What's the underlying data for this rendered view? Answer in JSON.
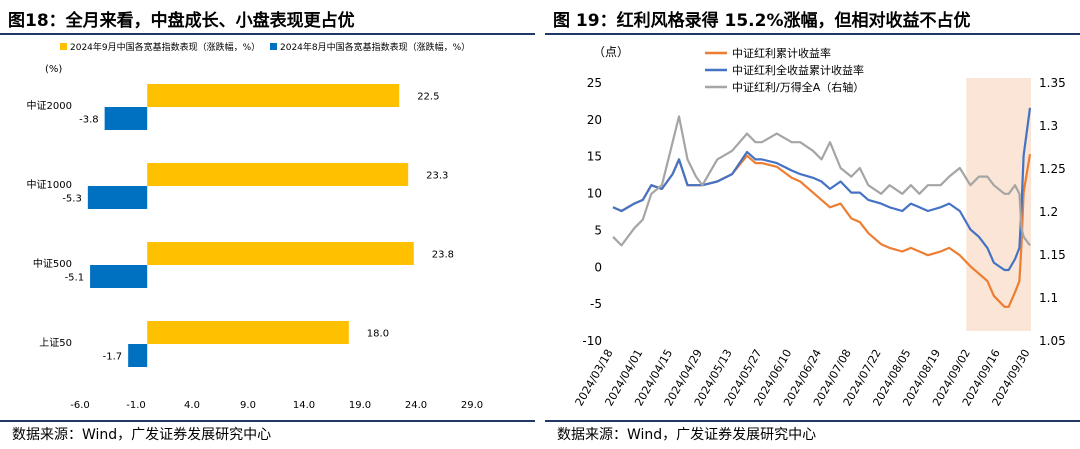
{
  "left": {
    "title": "图18：全月来看，中盘成长、小盘表现更占优",
    "source": "数据来源：Wind，广发证券发展研究中心",
    "chart_data": {
      "type": "bar",
      "orientation": "horizontal",
      "unit_label": "(%)",
      "categories": [
        "中证2000",
        "中证1000",
        "中证500",
        "上证50"
      ],
      "series": [
        {
          "name": "2024年9月中国各宽基指数表现（涨跌幅，%）",
          "color": "#FFC000",
          "values": [
            22.5,
            23.3,
            23.8,
            18.0
          ]
        },
        {
          "name": "2024年8月中国各宽基指数表现（涨跌幅，%）",
          "color": "#0070C0",
          "values": [
            -3.8,
            -5.3,
            -5.1,
            -1.7
          ]
        }
      ],
      "data_labels": [
        [
          "22.5",
          "23.3",
          "23.8",
          "18.0"
        ],
        [
          "-3.8",
          "-5.3",
          "-5.1",
          "-1.7"
        ]
      ],
      "xticks": [
        -6.0,
        -1.0,
        4.0,
        9.0,
        14.0,
        19.0,
        24.0,
        29.0
      ],
      "xtick_labels": [
        "-6.0",
        "-1.0",
        "4.0",
        "9.0",
        "14.0",
        "19.0",
        "24.0",
        "29.0"
      ],
      "xlim": [
        -6.0,
        29.0
      ],
      "legend_position": "top"
    }
  },
  "right": {
    "title": "图 19：红利风格录得 15.2%涨幅，但相对收益不占优",
    "source": "数据来源：Wind，广发证券发展研究中心",
    "chart_data": {
      "type": "line",
      "left_unit_label": "（点）",
      "left_ylim": [
        -10,
        25
      ],
      "left_yticks": [
        -10,
        -5,
        0,
        5,
        10,
        15,
        20,
        25
      ],
      "right_ylim": [
        1.05,
        1.35
      ],
      "right_yticks": [
        1.05,
        1.1,
        1.15,
        1.2,
        1.25,
        1.3,
        1.35
      ],
      "right_ytick_labels": [
        "1.05",
        "1.1",
        "1.15",
        "1.2",
        "1.25",
        "1.3",
        "1.35"
      ],
      "x_start": "2024-03-18",
      "x_end": "2024-09-30",
      "xtick_labels": [
        "2024/03/18",
        "2024/04/01",
        "2024/04/15",
        "2024/04/29",
        "2024/05/13",
        "2024/05/27",
        "2024/06/10",
        "2024/06/24",
        "2024/07/08",
        "2024/07/22",
        "2024/08/05",
        "2024/08/19",
        "2024/09/02",
        "2024/09/16",
        "2024/09/30"
      ],
      "highlight": {
        "from": "2024-09-01",
        "to": "2024-09-30",
        "color": "#FBE5D6"
      },
      "legend_position": "top-left",
      "series": [
        {
          "name": "中证红利累计收益率",
          "color": "#ED7D31",
          "axis": "left",
          "points": [
            [
              "2024-03-18",
              8.0
            ],
            [
              "2024-03-22",
              7.5
            ],
            [
              "2024-03-28",
              8.5
            ],
            [
              "2024-04-01",
              9.0
            ],
            [
              "2024-04-05",
              11.0
            ],
            [
              "2024-04-10",
              10.5
            ],
            [
              "2024-04-15",
              12.5
            ],
            [
              "2024-04-18",
              14.5
            ],
            [
              "2024-04-22",
              11.0
            ],
            [
              "2024-04-26",
              11.0
            ],
            [
              "2024-04-29",
              11.0
            ],
            [
              "2024-05-06",
              11.5
            ],
            [
              "2024-05-13",
              12.5
            ],
            [
              "2024-05-20",
              15.0
            ],
            [
              "2024-05-24",
              14.0
            ],
            [
              "2024-05-27",
              14.0
            ],
            [
              "2024-06-03",
              13.5
            ],
            [
              "2024-06-10",
              12.0
            ],
            [
              "2024-06-14",
              11.5
            ],
            [
              "2024-06-20",
              10.0
            ],
            [
              "2024-06-24",
              9.0
            ],
            [
              "2024-06-28",
              8.0
            ],
            [
              "2024-07-03",
              8.5
            ],
            [
              "2024-07-08",
              6.5
            ],
            [
              "2024-07-12",
              6.0
            ],
            [
              "2024-07-16",
              4.5
            ],
            [
              "2024-07-22",
              3.0
            ],
            [
              "2024-07-26",
              2.5
            ],
            [
              "2024-08-01",
              2.0
            ],
            [
              "2024-08-05",
              2.5
            ],
            [
              "2024-08-09",
              2.0
            ],
            [
              "2024-08-13",
              1.5
            ],
            [
              "2024-08-19",
              2.0
            ],
            [
              "2024-08-23",
              2.5
            ],
            [
              "2024-08-28",
              1.5
            ],
            [
              "2024-09-02",
              0.0
            ],
            [
              "2024-09-06",
              -1.0
            ],
            [
              "2024-09-10",
              -2.0
            ],
            [
              "2024-09-13",
              -4.0
            ],
            [
              "2024-09-18",
              -5.5
            ],
            [
              "2024-09-20",
              -5.5
            ],
            [
              "2024-09-23",
              -3.5
            ],
            [
              "2024-09-25",
              -2.0
            ],
            [
              "2024-09-26",
              3.0
            ],
            [
              "2024-09-27",
              10.0
            ],
            [
              "2024-09-30",
              15.2
            ]
          ]
        },
        {
          "name": "中证红利全收益累计收益率",
          "color": "#4472C4",
          "axis": "left",
          "points": [
            [
              "2024-03-18",
              8.0
            ],
            [
              "2024-03-22",
              7.5
            ],
            [
              "2024-03-28",
              8.5
            ],
            [
              "2024-04-01",
              9.0
            ],
            [
              "2024-04-05",
              11.0
            ],
            [
              "2024-04-10",
              10.5
            ],
            [
              "2024-04-15",
              12.5
            ],
            [
              "2024-04-18",
              14.5
            ],
            [
              "2024-04-22",
              11.0
            ],
            [
              "2024-04-26",
              11.0
            ],
            [
              "2024-04-29",
              11.0
            ],
            [
              "2024-05-06",
              11.5
            ],
            [
              "2024-05-13",
              12.5
            ],
            [
              "2024-05-20",
              15.5
            ],
            [
              "2024-05-24",
              14.5
            ],
            [
              "2024-05-27",
              14.5
            ],
            [
              "2024-06-03",
              14.0
            ],
            [
              "2024-06-10",
              13.0
            ],
            [
              "2024-06-14",
              12.5
            ],
            [
              "2024-06-20",
              12.0
            ],
            [
              "2024-06-24",
              11.5
            ],
            [
              "2024-06-28",
              10.5
            ],
            [
              "2024-07-03",
              11.5
            ],
            [
              "2024-07-08",
              10.0
            ],
            [
              "2024-07-12",
              10.0
            ],
            [
              "2024-07-16",
              9.0
            ],
            [
              "2024-07-22",
              8.5
            ],
            [
              "2024-07-26",
              8.0
            ],
            [
              "2024-08-01",
              7.5
            ],
            [
              "2024-08-05",
              8.5
            ],
            [
              "2024-08-09",
              8.0
            ],
            [
              "2024-08-13",
              7.5
            ],
            [
              "2024-08-19",
              8.0
            ],
            [
              "2024-08-23",
              8.5
            ],
            [
              "2024-08-28",
              7.5
            ],
            [
              "2024-09-02",
              5.0
            ],
            [
              "2024-09-06",
              4.0
            ],
            [
              "2024-09-10",
              2.5
            ],
            [
              "2024-09-13",
              0.5
            ],
            [
              "2024-09-18",
              -0.5
            ],
            [
              "2024-09-20",
              -0.5
            ],
            [
              "2024-09-23",
              1.0
            ],
            [
              "2024-09-25",
              2.5
            ],
            [
              "2024-09-26",
              8.0
            ],
            [
              "2024-09-27",
              15.0
            ],
            [
              "2024-09-30",
              21.5
            ]
          ]
        },
        {
          "name": "中证红利/万得全A（右轴）",
          "color": "#A5A5A5",
          "axis": "right",
          "points": [
            [
              "2024-03-18",
              1.17
            ],
            [
              "2024-03-22",
              1.16
            ],
            [
              "2024-03-28",
              1.18
            ],
            [
              "2024-04-01",
              1.19
            ],
            [
              "2024-04-05",
              1.22
            ],
            [
              "2024-04-10",
              1.23
            ],
            [
              "2024-04-15",
              1.28
            ],
            [
              "2024-04-18",
              1.31
            ],
            [
              "2024-04-22",
              1.26
            ],
            [
              "2024-04-26",
              1.24
            ],
            [
              "2024-04-29",
              1.23
            ],
            [
              "2024-05-06",
              1.26
            ],
            [
              "2024-05-13",
              1.27
            ],
            [
              "2024-05-20",
              1.29
            ],
            [
              "2024-05-24",
              1.28
            ],
            [
              "2024-05-27",
              1.28
            ],
            [
              "2024-06-03",
              1.29
            ],
            [
              "2024-06-10",
              1.28
            ],
            [
              "2024-06-14",
              1.28
            ],
            [
              "2024-06-20",
              1.27
            ],
            [
              "2024-06-24",
              1.26
            ],
            [
              "2024-06-28",
              1.28
            ],
            [
              "2024-07-03",
              1.25
            ],
            [
              "2024-07-08",
              1.24
            ],
            [
              "2024-07-12",
              1.25
            ],
            [
              "2024-07-16",
              1.23
            ],
            [
              "2024-07-22",
              1.22
            ],
            [
              "2024-07-26",
              1.23
            ],
            [
              "2024-08-01",
              1.22
            ],
            [
              "2024-08-05",
              1.23
            ],
            [
              "2024-08-09",
              1.22
            ],
            [
              "2024-08-13",
              1.23
            ],
            [
              "2024-08-19",
              1.23
            ],
            [
              "2024-08-23",
              1.24
            ],
            [
              "2024-08-28",
              1.25
            ],
            [
              "2024-09-02",
              1.23
            ],
            [
              "2024-09-06",
              1.24
            ],
            [
              "2024-09-10",
              1.24
            ],
            [
              "2024-09-13",
              1.23
            ],
            [
              "2024-09-18",
              1.22
            ],
            [
              "2024-09-20",
              1.22
            ],
            [
              "2024-09-23",
              1.23
            ],
            [
              "2024-09-25",
              1.22
            ],
            [
              "2024-09-26",
              1.18
            ],
            [
              "2024-09-27",
              1.17
            ],
            [
              "2024-09-30",
              1.16
            ]
          ]
        }
      ]
    }
  }
}
